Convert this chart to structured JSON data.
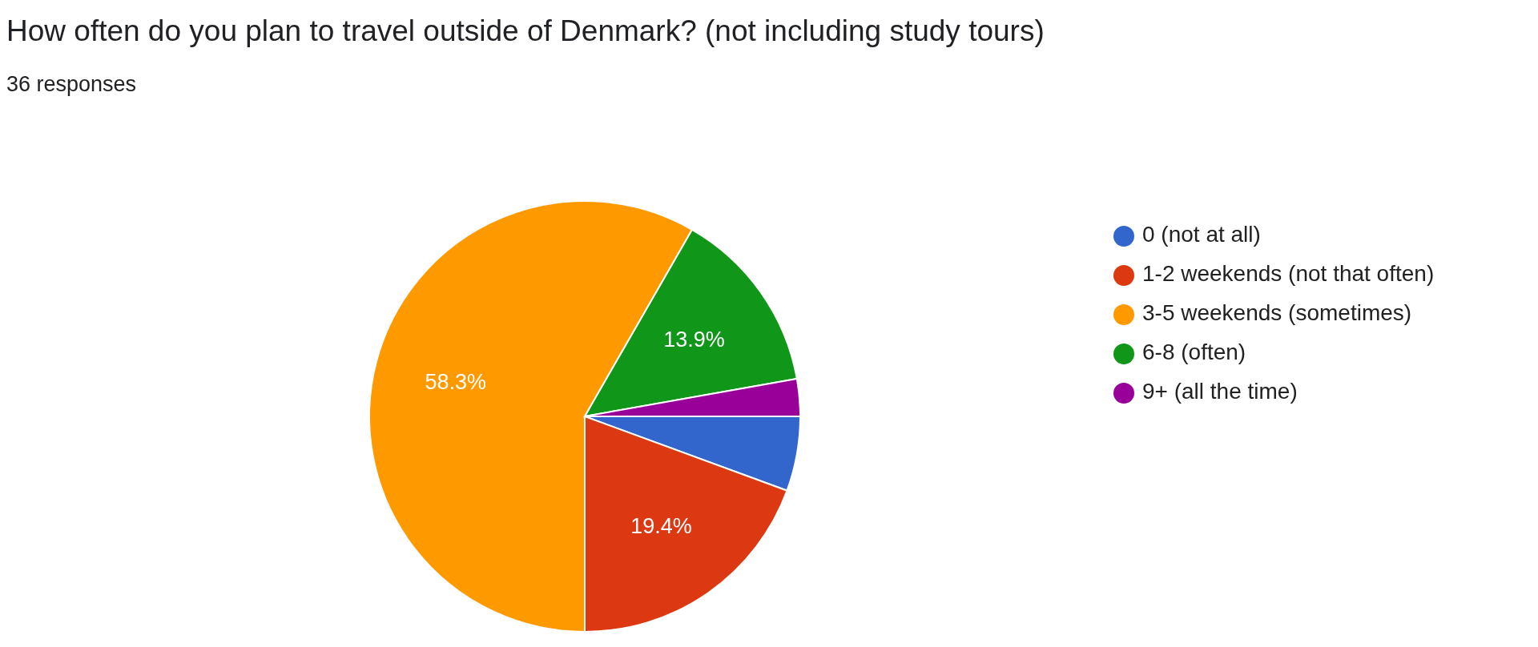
{
  "chart_data": {
    "type": "pie",
    "title": "How often do you plan to travel outside of Denmark? (not including study tours)",
    "subtitle": "36 responses",
    "categories": [
      "0 (not at all)",
      "1-2 weekends (not that often)",
      "3-5 weekends (sometimes)",
      "6-8 (often)",
      "9+ (all the time)"
    ],
    "values": [
      5.6,
      19.4,
      58.3,
      13.9,
      2.8
    ],
    "value_labels": [
      null,
      "19.4%",
      "58.3%",
      "13.9%",
      null
    ],
    "colors": [
      "#3366cc",
      "#dc3912",
      "#ff9900",
      "#109618",
      "#990099"
    ],
    "legend": "right"
  }
}
